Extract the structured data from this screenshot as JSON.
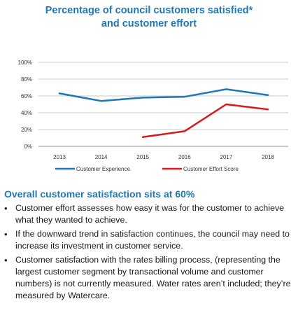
{
  "title_lines": [
    "Percentage of council customers satisfied*",
    "and customer effort"
  ],
  "chart_data": {
    "type": "line",
    "title": "Percentage of council customers satisfied* and customer effort",
    "categories": [
      "2013",
      "2014",
      "2015",
      "2016",
      "2017",
      "2018"
    ],
    "yticks": [
      "0%",
      "20%",
      "40%",
      "60%",
      "80%",
      "100%"
    ],
    "ylim": [
      0,
      100
    ],
    "grid": true,
    "legend_position": "bottom",
    "series": [
      {
        "name": "Customer Experience",
        "color": "#1f78b4",
        "values": [
          63,
          54,
          58,
          59,
          68,
          61
        ]
      },
      {
        "name": "Customer Effort Score",
        "color": "#d7191c",
        "values": [
          null,
          null,
          11,
          18,
          50,
          44
        ]
      }
    ]
  },
  "summary": {
    "heading": "Overall customer satisfaction sits at 60%",
    "bullets": [
      "Customer effort assesses how easy it was for the customer to achieve what they wanted to achieve.",
      "If the downward trend in satisfaction continues, the council may need to increase its investment in customer service.",
      "Customer satisfaction with the rates billing process, (representing the largest customer segment by transactional volume and customer numbers) is not currently measured. Water rates aren’t included; they’re  measured by Watercare."
    ]
  }
}
